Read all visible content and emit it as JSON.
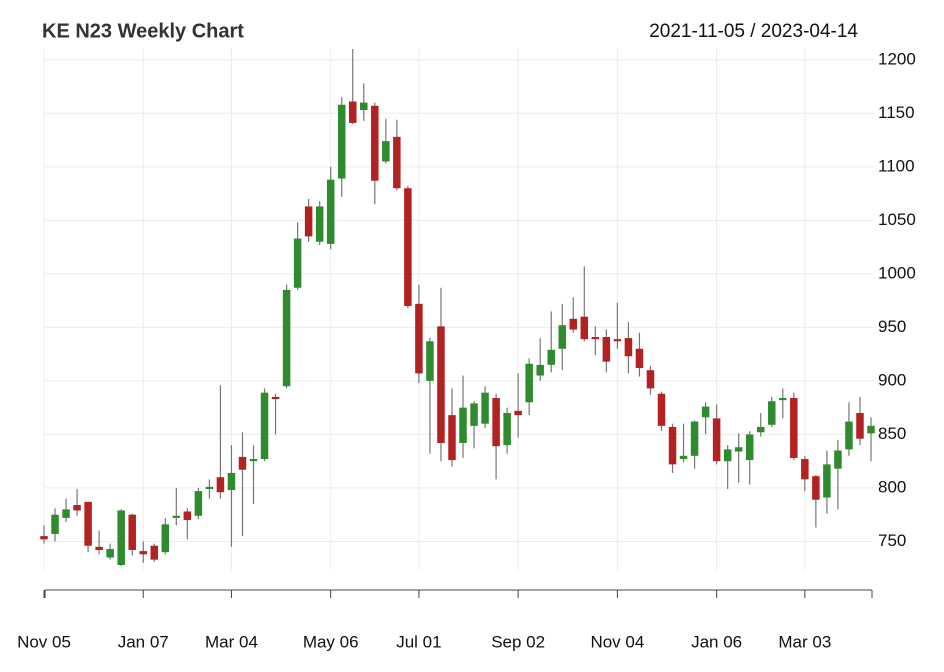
{
  "chart_data": {
    "type": "candlestick",
    "title": "KE N23 Weekly Chart",
    "subtitle": "2021-11-05 / 2023-04-14",
    "categories": [
      "Nov 05",
      null,
      null,
      null,
      null,
      null,
      null,
      null,
      null,
      "Jan 07",
      null,
      null,
      null,
      null,
      null,
      null,
      null,
      "Mar 04",
      null,
      null,
      null,
      null,
      null,
      null,
      null,
      null,
      "May 06",
      null,
      null,
      null,
      null,
      null,
      null,
      null,
      "Jul 01",
      null,
      null,
      null,
      null,
      null,
      null,
      null,
      null,
      "Sep 02",
      null,
      null,
      null,
      null,
      null,
      null,
      null,
      null,
      "Nov 04",
      null,
      null,
      null,
      null,
      null,
      null,
      null,
      null,
      "Jan 06",
      null,
      null,
      null,
      null,
      null,
      null,
      null,
      "Mar 03",
      null,
      null,
      null,
      null,
      null,
      null
    ],
    "open": [
      755,
      757,
      772,
      784,
      787,
      745,
      735,
      728,
      775,
      741,
      746,
      740,
      772,
      778,
      774,
      799,
      810,
      798,
      829,
      825,
      827,
      885,
      895,
      987,
      1063,
      1030,
      1028,
      1089,
      1161,
      1153,
      1157,
      1105,
      1128,
      1080,
      972,
      900,
      951,
      868,
      842,
      858,
      860,
      884,
      840,
      872,
      880,
      905,
      915,
      930,
      958,
      960,
      941,
      941,
      939,
      940,
      930,
      910,
      888,
      857,
      827,
      830,
      866,
      865,
      825,
      834,
      826,
      852,
      859,
      882,
      884,
      827,
      811,
      791,
      818,
      836,
      870,
      851
    ],
    "high": [
      765,
      781,
      790,
      799,
      787,
      760,
      748,
      780,
      776,
      750,
      748,
      772,
      800,
      781,
      800,
      808,
      896,
      840,
      852,
      840,
      893,
      888,
      990,
      1048,
      1070,
      1068,
      1100,
      1165,
      1210,
      1178,
      1160,
      1145,
      1144,
      1082,
      990,
      940,
      987,
      893,
      905,
      881,
      895,
      888,
      875,
      907,
      921,
      940,
      965,
      972,
      978,
      1007,
      951,
      948,
      973,
      955,
      945,
      914,
      890,
      860,
      860,
      863,
      880,
      878,
      840,
      851,
      853,
      870,
      885,
      893,
      889,
      830,
      812,
      835,
      845,
      880,
      885,
      866
    ],
    "low": [
      748,
      750,
      768,
      774,
      740,
      738,
      733,
      727,
      737,
      730,
      731,
      738,
      765,
      752,
      771,
      790,
      790,
      745,
      755,
      785,
      825,
      850,
      893,
      985,
      1030,
      1027,
      1023,
      1072,
      1140,
      1143,
      1065,
      1103,
      1078,
      968,
      898,
      832,
      825,
      820,
      828,
      837,
      856,
      808,
      832,
      847,
      868,
      900,
      908,
      910,
      945,
      937,
      924,
      908,
      930,
      907,
      904,
      887,
      853,
      814,
      824,
      818,
      850,
      822,
      799,
      805,
      803,
      848,
      857,
      865,
      826,
      797,
      763,
      776,
      780,
      830,
      840,
      825
    ],
    "close": [
      752,
      775,
      780,
      779,
      746,
      742,
      743,
      779,
      742,
      738,
      733,
      766,
      774,
      770,
      797,
      801,
      796,
      814,
      817,
      827,
      889,
      883,
      985,
      1033,
      1035,
      1063,
      1088,
      1158,
      1141,
      1160,
      1087,
      1124,
      1080,
      970,
      907,
      937,
      842,
      826,
      875,
      879,
      889,
      839,
      870,
      868,
      916,
      915,
      929,
      952,
      948,
      939,
      939,
      918,
      937,
      923,
      912,
      893,
      858,
      822,
      830,
      862,
      876,
      825,
      836,
      838,
      850,
      857,
      881,
      884,
      828,
      808,
      789,
      822,
      835,
      862,
      846,
      858
    ],
    "up_color": "#2e8b2e",
    "down_color": "#b22222",
    "ylim": [
      728,
      1211
    ],
    "yticks": [
      750,
      800,
      850,
      900,
      950,
      1000,
      1050,
      1100,
      1150,
      1200
    ],
    "grid": true
  }
}
